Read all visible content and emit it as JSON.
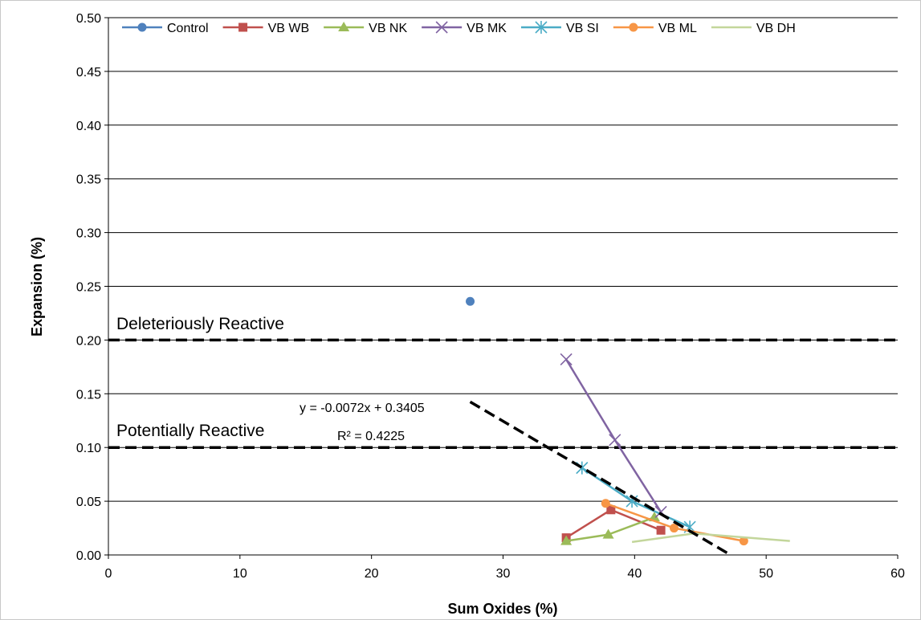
{
  "chart_data": {
    "type": "scatter",
    "xlabel": "Sum Oxides (%)",
    "ylabel": "Expansion (%)",
    "xlim": [
      0,
      60
    ],
    "ylim": [
      0,
      0.5
    ],
    "x_ticks": [
      0,
      10,
      20,
      30,
      40,
      50,
      60
    ],
    "y_ticks": [
      0.0,
      0.05,
      0.1,
      0.15,
      0.2,
      0.25,
      0.3,
      0.35,
      0.4,
      0.45,
      0.5
    ],
    "grid": "horizontal",
    "legend_position": "top",
    "series": [
      {
        "name": "Control",
        "color": "#4f81bd",
        "marker": "circle",
        "line": false,
        "points": [
          [
            27.5,
            0.236
          ]
        ]
      },
      {
        "name": "VB WB",
        "color": "#c0504d",
        "marker": "square",
        "line": true,
        "points": [
          [
            34.8,
            0.016
          ],
          [
            38.2,
            0.042
          ],
          [
            42.0,
            0.023
          ]
        ]
      },
      {
        "name": "VB NK",
        "color": "#9bbb59",
        "marker": "triangle",
        "line": true,
        "points": [
          [
            34.8,
            0.013
          ],
          [
            38.0,
            0.019
          ],
          [
            41.5,
            0.035
          ]
        ]
      },
      {
        "name": "VB MK",
        "color": "#8064a2",
        "marker": "x",
        "line": true,
        "points": [
          [
            34.8,
            0.182
          ],
          [
            38.5,
            0.107
          ],
          [
            42.0,
            0.04
          ]
        ]
      },
      {
        "name": "VB SI",
        "color": "#4bacc6",
        "marker": "asterisk",
        "line": true,
        "points": [
          [
            36.0,
            0.081
          ],
          [
            39.8,
            0.05
          ],
          [
            44.2,
            0.026
          ]
        ]
      },
      {
        "name": "VB ML",
        "color": "#f79646",
        "marker": "circle",
        "line": true,
        "points": [
          [
            37.8,
            0.048
          ],
          [
            43.0,
            0.025
          ],
          [
            48.3,
            0.013
          ]
        ]
      },
      {
        "name": "VB DH",
        "color": "#c3d69b",
        "marker": "none",
        "line": true,
        "points": [
          [
            39.8,
            0.012
          ],
          [
            44.5,
            0.02
          ],
          [
            51.8,
            0.013
          ]
        ]
      }
    ],
    "reference_lines": [
      {
        "y": 0.2,
        "label": "Deleteriously Reactive",
        "style": "dashed"
      },
      {
        "y": 0.1,
        "label": "Potentially Reactive",
        "style": "dashed"
      }
    ],
    "trendline": {
      "slope": -0.0072,
      "intercept": 0.3405,
      "x_range": [
        27.5,
        47.3
      ],
      "equation": "y = -0.0072x + 0.3405",
      "r_squared": "R² = 0.4225",
      "style": "dashed"
    }
  }
}
